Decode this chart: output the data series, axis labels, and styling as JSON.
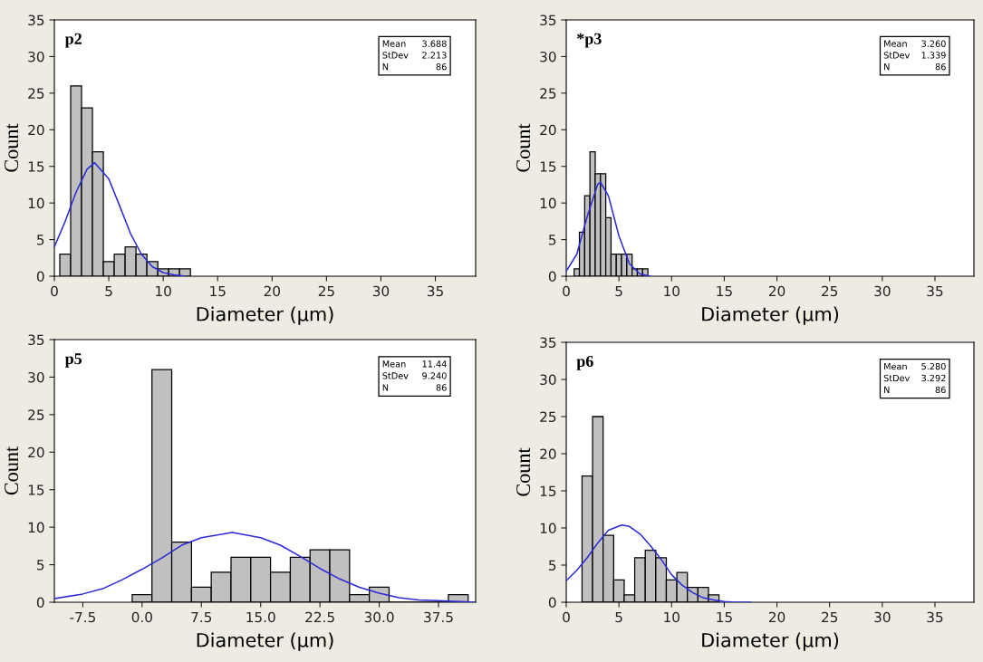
{
  "chart_data": [
    {
      "type": "histogram",
      "title": "p2",
      "xlabel": "Diameter (μm)",
      "ylabel": "Count",
      "annotations": [
        "Mean 3.688",
        "StDev 2.213",
        "N 86"
      ],
      "xlim": [
        0,
        38.7
      ],
      "ylim": [
        0,
        35
      ],
      "xticks": [
        0,
        5,
        10,
        15,
        20,
        25,
        30,
        35
      ],
      "yticks": [
        0,
        5,
        10,
        15,
        20,
        25,
        30,
        35
      ],
      "series": [
        {
          "type": "histogram",
          "color": "#c0c0c0",
          "bins": [
            0.5,
            1.5,
            2.5,
            3.5,
            4.5,
            5.5,
            6.5,
            7.5,
            8.5,
            9.5,
            10.5,
            11.5,
            12.5
          ],
          "values": [
            3,
            26,
            23,
            17,
            2,
            3,
            4,
            3,
            2,
            1,
            1,
            1
          ]
        },
        {
          "type": "line",
          "color": "#2a2ad8",
          "x": [
            0,
            1,
            2,
            3,
            3.7,
            5,
            6,
            7,
            8,
            9,
            10,
            11,
            12
          ],
          "values": [
            4,
            7.5,
            11.5,
            14.6,
            15.5,
            13.3,
            9.6,
            5.8,
            3,
            1.3,
            0.5,
            0.2,
            0
          ]
        }
      ]
    },
    {
      "type": "histogram",
      "title": "*p3",
      "xlabel": "Diameter (μm)",
      "ylabel": "Count",
      "annotations": [
        "Mean 3.260",
        "StDev 1.339",
        "N 86"
      ],
      "xlim": [
        0,
        38.7
      ],
      "ylim": [
        0,
        35
      ],
      "xticks": [
        0,
        5,
        10,
        15,
        20,
        25,
        30,
        35
      ],
      "yticks": [
        0,
        5,
        10,
        15,
        20,
        25,
        30,
        35
      ],
      "series": [
        {
          "type": "histogram",
          "color": "#c0c0c0",
          "bins": [
            0.75,
            1.25,
            1.75,
            2.25,
            2.75,
            3.25,
            3.75,
            4.25,
            4.75,
            5.25,
            5.75,
            6.25,
            6.75,
            7.25,
            7.75
          ],
          "values": [
            1,
            6,
            11,
            17,
            14,
            14,
            8,
            3,
            3,
            3,
            3,
            1,
            1,
            1
          ]
        },
        {
          "type": "line",
          "color": "#2a2ad8",
          "x": [
            0,
            1,
            2,
            3,
            3.26,
            4,
            5,
            6,
            7,
            8
          ],
          "values": [
            0.7,
            3,
            8.2,
            12.6,
            12.8,
            11,
            5.5,
            1.7,
            0.3,
            0
          ]
        }
      ]
    },
    {
      "type": "histogram",
      "title": "p5",
      "xlabel": "Diameter (μm)",
      "ylabel": "Count",
      "annotations": [
        "Mean 11.44",
        "StDev 9.240",
        "N 86"
      ],
      "xlim": [
        -11.1,
        42.2
      ],
      "ylim": [
        0,
        35
      ],
      "xticks": [
        {
          "value": -7.5,
          "label": "-7.5"
        },
        {
          "value": 0,
          "label": "0.0"
        },
        {
          "value": 7.5,
          "label": "7.5"
        },
        {
          "value": 15,
          "label": "15.0"
        },
        {
          "value": 22.5,
          "label": "22.5"
        },
        {
          "value": 30,
          "label": "30.0"
        },
        {
          "value": 37.5,
          "label": "37.5"
        }
      ],
      "yticks": [
        0,
        5,
        10,
        15,
        20,
        25,
        30,
        35
      ],
      "series": [
        {
          "type": "histogram",
          "color": "#c0c0c0",
          "bins": [
            -1.25,
            1.25,
            3.75,
            6.25,
            8.75,
            11.25,
            13.75,
            16.25,
            18.75,
            21.25,
            23.75,
            26.25,
            28.75,
            31.25,
            33.75,
            36.25,
            38.75,
            41.25
          ],
          "values": [
            1,
            31,
            8,
            2,
            4,
            6,
            6,
            4,
            6,
            7,
            7,
            1,
            2,
            0,
            0,
            0,
            1
          ]
        },
        {
          "type": "line",
          "color": "#2a2ad8",
          "x": [
            -11,
            -7.5,
            -5,
            -2.5,
            0,
            2.5,
            5,
            7.5,
            11.44,
            15,
            17.5,
            20,
            22.5,
            25,
            27.5,
            30,
            32.5,
            35,
            37.5,
            40,
            42
          ],
          "values": [
            0.5,
            1.1,
            1.8,
            3,
            4.4,
            5.9,
            7.6,
            8.6,
            9.3,
            8.6,
            7.6,
            6.1,
            4.5,
            3.1,
            2,
            1.2,
            0.6,
            0.3,
            0.2,
            0.1,
            0
          ]
        }
      ]
    },
    {
      "type": "histogram",
      "title": "p6",
      "xlabel": "Diameter (μm)",
      "ylabel": "Count",
      "annotations": [
        "Mean 5.280",
        "StDev 3.292",
        "N 86"
      ],
      "xlim": [
        0,
        38.7
      ],
      "ylim": [
        0,
        35
      ],
      "xticks": [
        0,
        5,
        10,
        15,
        20,
        25,
        30,
        35
      ],
      "yticks": [
        0,
        5,
        10,
        15,
        20,
        25,
        30,
        35
      ],
      "series": [
        {
          "type": "histogram",
          "color": "#c0c0c0",
          "bins": [
            1.5,
            2.5,
            3.5,
            4.5,
            5.5,
            6.5,
            7.5,
            8.5,
            9.5,
            10.5,
            11.5,
            12.5,
            13.5,
            14.5
          ],
          "values": [
            17,
            25,
            9,
            3,
            1,
            6,
            7,
            6,
            3,
            4,
            2,
            2,
            1
          ]
        },
        {
          "type": "line",
          "color": "#2a2ad8",
          "x": [
            0,
            1,
            2,
            3,
            4,
            5.28,
            6,
            7,
            8,
            9,
            10,
            11,
            12,
            13,
            14,
            15,
            16,
            17.5
          ],
          "values": [
            2.9,
            4.3,
            6,
            8,
            9.7,
            10.4,
            10.2,
            9.2,
            7.6,
            5.8,
            3.7,
            2.3,
            1.3,
            0.6,
            0.3,
            0.1,
            0,
            0
          ]
        }
      ]
    }
  ]
}
